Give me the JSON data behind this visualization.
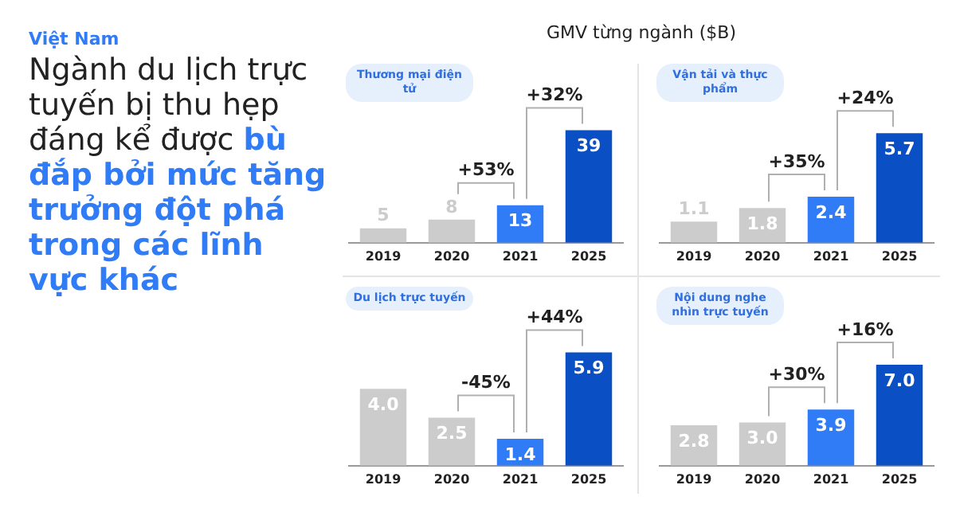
{
  "chart_data": [
    {
      "type": "other",
      "subtitle": "Việt Nam",
      "title": "Ngành du lịch trực tuyến bị thu hẹp đáng kể được",
      "annotations": [
        "bù đắp bởi mức tăng trưởng đột phá trong các lĩnh vực khác"
      ]
    },
    {
      "type": "other",
      "title": "GMV từng ngành ($B)"
    },
    {
      "type": "bar",
      "title": "Thương mại điện tử",
      "categories": [
        "2019",
        "2020",
        "2021",
        "2025"
      ],
      "values": [
        5,
        8,
        13,
        39
      ],
      "value_labels": [
        "5",
        "8",
        "13",
        "39"
      ],
      "colors": [
        "#cccccc",
        "#cccccc",
        "#2f7cf6",
        "#0b4fc4"
      ],
      "tick_labels": "x",
      "grid": false,
      "annotations": [
        {
          "text": "+53%",
          "x": "2021",
          "y": 13
        },
        {
          "text": "+32%",
          "x": "2025",
          "y": 39
        }
      ]
    },
    {
      "type": "bar",
      "title": "Vận tải và thực phẩm",
      "categories": [
        "2019",
        "2020",
        "2021",
        "2025"
      ],
      "values": [
        1.1,
        1.8,
        2.4,
        5.7
      ],
      "value_labels": [
        "1.1",
        "1.8",
        "2.4",
        "5.7"
      ],
      "colors": [
        "#cccccc",
        "#cccccc",
        "#2f7cf6",
        "#0b4fc4"
      ],
      "tick_labels": "x",
      "grid": false,
      "annotations": [
        {
          "text": "+35%",
          "x": "2021",
          "y": 2.4
        },
        {
          "text": "+24%",
          "x": "2025",
          "y": 5.7
        }
      ]
    },
    {
      "type": "bar",
      "title": "Du lịch trực tuyến",
      "categories": [
        "2019",
        "2020",
        "2021",
        "2025"
      ],
      "values": [
        4.0,
        2.5,
        1.4,
        5.9
      ],
      "value_labels": [
        "4.0",
        "2.5",
        "1.4",
        "5.9"
      ],
      "colors": [
        "#cccccc",
        "#cccccc",
        "#2f7cf6",
        "#0b4fc4"
      ],
      "tick_labels": "x",
      "grid": false,
      "annotations": [
        {
          "text": "-45%",
          "x": "2021",
          "y": 1.4
        },
        {
          "text": "+44%",
          "x": "2025",
          "y": 5.9
        }
      ]
    },
    {
      "type": "bar",
      "title": "Nội dung nghe nhìn trực tuyến",
      "categories": [
        "2019",
        "2020",
        "2021",
        "2025"
      ],
      "values": [
        2.8,
        3.0,
        3.9,
        7.0
      ],
      "value_labels": [
        "2.8",
        "3.0",
        "3.9",
        "7.0"
      ],
      "colors": [
        "#cccccc",
        "#cccccc",
        "#2f7cf6",
        "#0b4fc4"
      ],
      "tick_labels": "x",
      "grid": false,
      "annotations": [
        {
          "text": "+30%",
          "x": "2021",
          "y": 3.9
        },
        {
          "text": "+16%",
          "x": "2025",
          "y": 7.0
        }
      ]
    }
  ]
}
